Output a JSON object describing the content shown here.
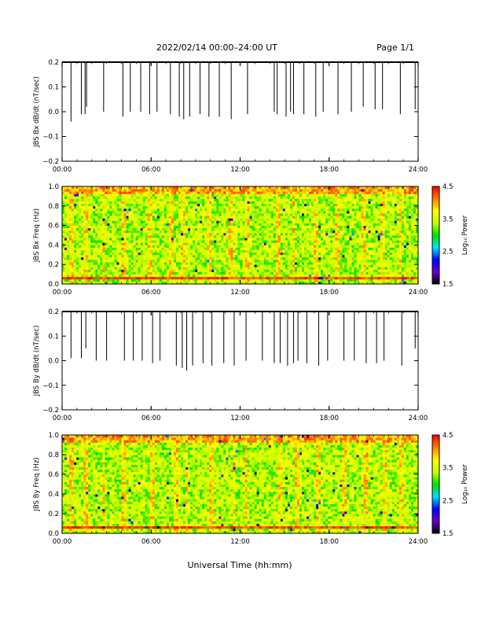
{
  "header": {
    "title": "2022/02/14  00:00–24:00 UT",
    "page": "Page 1/1"
  },
  "xaxis": {
    "label": "Universal Time (hh:mm)",
    "ticks": [
      "00:00",
      "06:00",
      "12:00",
      "18:00",
      "24:00"
    ],
    "range_hours": [
      0,
      24
    ]
  },
  "colorbar": {
    "label": "Log₁₀ Power",
    "ticks": [
      "1.5",
      "2.5",
      "3.5",
      "4.5"
    ],
    "range": [
      1.5,
      4.5
    ],
    "colormap": [
      "#000000",
      "#6a00c8",
      "#0000ff",
      "#00e0ff",
      "#00e000",
      "#c8ff00",
      "#ffff00",
      "#ff8000",
      "#ff0000"
    ]
  },
  "chart_data": [
    {
      "type": "line",
      "ylabel": "JBS Bx dB/dt (nT/sec)",
      "ylim": [
        -0.2,
        0.2
      ],
      "yticks": [
        "0.2",
        "0.1",
        "0.0",
        "−0.1",
        "−0.2"
      ],
      "baseline": 0.2,
      "spikes": [
        {
          "t": 0.6,
          "v": -0.04
        },
        {
          "t": 1.3,
          "v": -0.01
        },
        {
          "t": 1.55,
          "v": -0.01
        },
        {
          "t": 1.65,
          "v": 0.02
        },
        {
          "t": 2.8,
          "v": 0.0
        },
        {
          "t": 4.1,
          "v": -0.02
        },
        {
          "t": 4.6,
          "v": 0.0
        },
        {
          "t": 5.3,
          "v": 0.0
        },
        {
          "t": 5.9,
          "v": -0.01
        },
        {
          "t": 6.4,
          "v": 0.0
        },
        {
          "t": 7.3,
          "v": -0.01
        },
        {
          "t": 7.9,
          "v": -0.02
        },
        {
          "t": 8.2,
          "v": -0.03
        },
        {
          "t": 8.6,
          "v": -0.02
        },
        {
          "t": 9.3,
          "v": -0.01
        },
        {
          "t": 9.9,
          "v": -0.02
        },
        {
          "t": 10.6,
          "v": -0.02
        },
        {
          "t": 11.4,
          "v": -0.03
        },
        {
          "t": 12.5,
          "v": -0.01
        },
        {
          "t": 14.3,
          "v": 0.0
        },
        {
          "t": 14.5,
          "v": -0.01
        },
        {
          "t": 15.1,
          "v": -0.02
        },
        {
          "t": 15.4,
          "v": 0.0
        },
        {
          "t": 15.6,
          "v": -0.01
        },
        {
          "t": 16.3,
          "v": -0.01
        },
        {
          "t": 17.1,
          "v": -0.02
        },
        {
          "t": 17.6,
          "v": 0.0
        },
        {
          "t": 18.6,
          "v": -0.01
        },
        {
          "t": 19.5,
          "v": 0.0
        },
        {
          "t": 20.3,
          "v": 0.02
        },
        {
          "t": 21.1,
          "v": 0.01
        },
        {
          "t": 21.6,
          "v": 0.01
        },
        {
          "t": 22.8,
          "v": -0.01
        },
        {
          "t": 23.8,
          "v": 0.01
        }
      ]
    },
    {
      "type": "heatmap",
      "ylabel": "JBS Bx Freq (Hz)",
      "ylim": [
        0.0,
        1.0
      ],
      "yticks": [
        "1.0",
        "0.8",
        "0.6",
        "0.4",
        "0.2",
        "0.0"
      ],
      "zlim": [
        1.5,
        4.5
      ],
      "typical_power": 3.4,
      "high_freq_band": {
        "from": 0.92,
        "to": 1.0,
        "power": 4.0
      },
      "resonance_line": {
        "freq": 0.07,
        "power": 4.1
      },
      "vertical_bursts_hours": [
        0.6,
        1.6,
        2.8,
        4.1,
        5.9,
        7.3,
        8.2,
        9.9,
        11.4,
        12.5,
        14.5,
        15.6,
        17.1,
        18.6,
        20.3,
        21.6,
        22.8
      ]
    },
    {
      "type": "line",
      "ylabel": "JBS By dB/dt (nT/sec)",
      "ylim": [
        -0.2,
        0.2
      ],
      "yticks": [
        "0.2",
        "0.1",
        "0.0",
        "−0.1",
        "−0.2"
      ],
      "baseline": 0.2,
      "spikes": [
        {
          "t": 0.6,
          "v": 0.01
        },
        {
          "t": 1.3,
          "v": 0.01
        },
        {
          "t": 1.6,
          "v": 0.05
        },
        {
          "t": 2.3,
          "v": 0.0
        },
        {
          "t": 3.0,
          "v": 0.0
        },
        {
          "t": 4.2,
          "v": 0.0
        },
        {
          "t": 4.8,
          "v": 0.0
        },
        {
          "t": 5.4,
          "v": 0.0
        },
        {
          "t": 6.1,
          "v": -0.01
        },
        {
          "t": 6.6,
          "v": 0.0
        },
        {
          "t": 7.7,
          "v": -0.02
        },
        {
          "t": 8.1,
          "v": -0.03
        },
        {
          "t": 8.4,
          "v": -0.04
        },
        {
          "t": 8.8,
          "v": -0.02
        },
        {
          "t": 9.5,
          "v": -0.01
        },
        {
          "t": 10.1,
          "v": -0.02
        },
        {
          "t": 10.9,
          "v": -0.01
        },
        {
          "t": 11.6,
          "v": -0.02
        },
        {
          "t": 12.4,
          "v": 0.0
        },
        {
          "t": 13.5,
          "v": 0.0
        },
        {
          "t": 14.3,
          "v": -0.01
        },
        {
          "t": 14.7,
          "v": -0.01
        },
        {
          "t": 15.2,
          "v": -0.02
        },
        {
          "t": 15.6,
          "v": -0.01
        },
        {
          "t": 15.9,
          "v": 0.0
        },
        {
          "t": 16.5,
          "v": -0.01
        },
        {
          "t": 17.3,
          "v": -0.02
        },
        {
          "t": 17.9,
          "v": 0.0
        },
        {
          "t": 19.0,
          "v": 0.0
        },
        {
          "t": 19.7,
          "v": 0.0
        },
        {
          "t": 20.5,
          "v": -0.01
        },
        {
          "t": 21.2,
          "v": -0.01
        },
        {
          "t": 21.7,
          "v": 0.0
        },
        {
          "t": 22.9,
          "v": -0.02
        },
        {
          "t": 23.8,
          "v": 0.05
        }
      ]
    },
    {
      "type": "heatmap",
      "ylabel": "JBS By Freq (Hz)",
      "ylim": [
        0.0,
        1.0
      ],
      "yticks": [
        "1.0",
        "0.8",
        "0.6",
        "0.4",
        "0.2",
        "0.0"
      ],
      "zlim": [
        1.5,
        4.5
      ],
      "typical_power": 3.4,
      "high_freq_band": {
        "from": 0.92,
        "to": 1.0,
        "power": 4.0
      },
      "resonance_line": {
        "freq": 0.07,
        "power": 4.1
      },
      "vertical_bursts_hours": [
        0.6,
        1.6,
        2.8,
        4.2,
        6.1,
        7.7,
        8.4,
        10.1,
        11.6,
        12.4,
        14.7,
        15.9,
        17.3,
        19.0,
        20.5,
        21.7,
        22.9
      ]
    }
  ]
}
